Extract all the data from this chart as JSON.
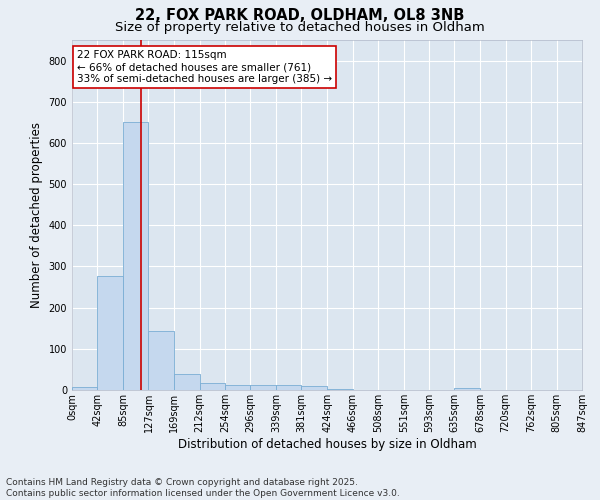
{
  "title_line1": "22, FOX PARK ROAD, OLDHAM, OL8 3NB",
  "title_line2": "Size of property relative to detached houses in Oldham",
  "xlabel": "Distribution of detached houses by size in Oldham",
  "ylabel": "Number of detached properties",
  "bin_labels": [
    "0sqm",
    "42sqm",
    "85sqm",
    "127sqm",
    "169sqm",
    "212sqm",
    "254sqm",
    "296sqm",
    "339sqm",
    "381sqm",
    "424sqm",
    "466sqm",
    "508sqm",
    "551sqm",
    "593sqm",
    "635sqm",
    "678sqm",
    "720sqm",
    "762sqm",
    "805sqm",
    "847sqm"
  ],
  "bar_values": [
    8,
    278,
    650,
    143,
    40,
    18,
    13,
    12,
    12,
    10,
    3,
    0,
    0,
    0,
    0,
    5,
    0,
    0,
    0,
    0
  ],
  "bin_edges": [
    0,
    42,
    85,
    127,
    169,
    212,
    254,
    296,
    339,
    381,
    424,
    466,
    508,
    551,
    593,
    635,
    678,
    720,
    762,
    805,
    847
  ],
  "bar_color": "#c5d8ee",
  "bar_edge_color": "#7aadd4",
  "property_size": 115,
  "vline_color": "#cc0000",
  "annotation_text": "22 FOX PARK ROAD: 115sqm\n← 66% of detached houses are smaller (761)\n33% of semi-detached houses are larger (385) →",
  "annotation_box_color": "#ffffff",
  "annotation_box_edge": "#cc0000",
  "ylim": [
    0,
    850
  ],
  "yticks": [
    0,
    100,
    200,
    300,
    400,
    500,
    600,
    700,
    800
  ],
  "footer_line1": "Contains HM Land Registry data © Crown copyright and database right 2025.",
  "footer_line2": "Contains public sector information licensed under the Open Government Licence v3.0.",
  "bg_color": "#e8eef5",
  "plot_bg_color": "#dce6f0",
  "grid_color": "#ffffff",
  "title_fontsize": 10.5,
  "subtitle_fontsize": 9.5,
  "axis_label_fontsize": 8.5,
  "tick_fontsize": 7,
  "annotation_fontsize": 7.5,
  "footer_fontsize": 6.5
}
